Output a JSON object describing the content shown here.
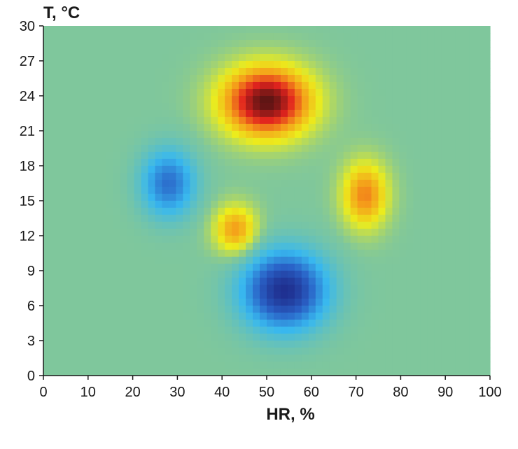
{
  "chart_data": {
    "type": "heatmap",
    "title": "",
    "xlabel": "HR, %",
    "ylabel": "T, °C",
    "xlim": [
      0,
      100
    ],
    "ylim": [
      0,
      30
    ],
    "x_ticks": [
      "0",
      "10",
      "20",
      "30",
      "40",
      "50",
      "60",
      "70",
      "80",
      "90",
      "100"
    ],
    "y_ticks": [
      "0",
      "3",
      "6",
      "9",
      "12",
      "15",
      "18",
      "21",
      "24",
      "27",
      "30"
    ],
    "grid": false,
    "legend": "none",
    "colormap": [
      "#1f2f8f",
      "#2a63c8",
      "#38b8ef",
      "#7fc79c",
      "#ecec1c",
      "#f59a1a",
      "#e2231e",
      "#5a1414"
    ],
    "background_value": 0,
    "features": [
      {
        "name": "",
        "type": "peak",
        "hr": 50,
        "t": 23.5,
        "amplitude": 1.0,
        "spread_hr": 7,
        "spread_t": 2.1
      },
      {
        "name": "",
        "type": "peak",
        "hr": 72,
        "t": 15.5,
        "amplitude": 0.55,
        "spread_hr": 3.6,
        "spread_t": 2.0
      },
      {
        "name": "",
        "type": "peak",
        "hr": 43,
        "t": 12.5,
        "amplitude": 0.5,
        "spread_hr": 3.4,
        "spread_t": 1.5
      },
      {
        "name": "",
        "type": "valley",
        "hr": 28,
        "t": 16.5,
        "amplitude": -0.62,
        "spread_hr": 4.2,
        "spread_t": 2.0
      },
      {
        "name": "",
        "type": "valley",
        "hr": 54,
        "t": 7.3,
        "amplitude": -1.0,
        "spread_hr": 6.5,
        "spread_t": 2.3
      }
    ]
  }
}
